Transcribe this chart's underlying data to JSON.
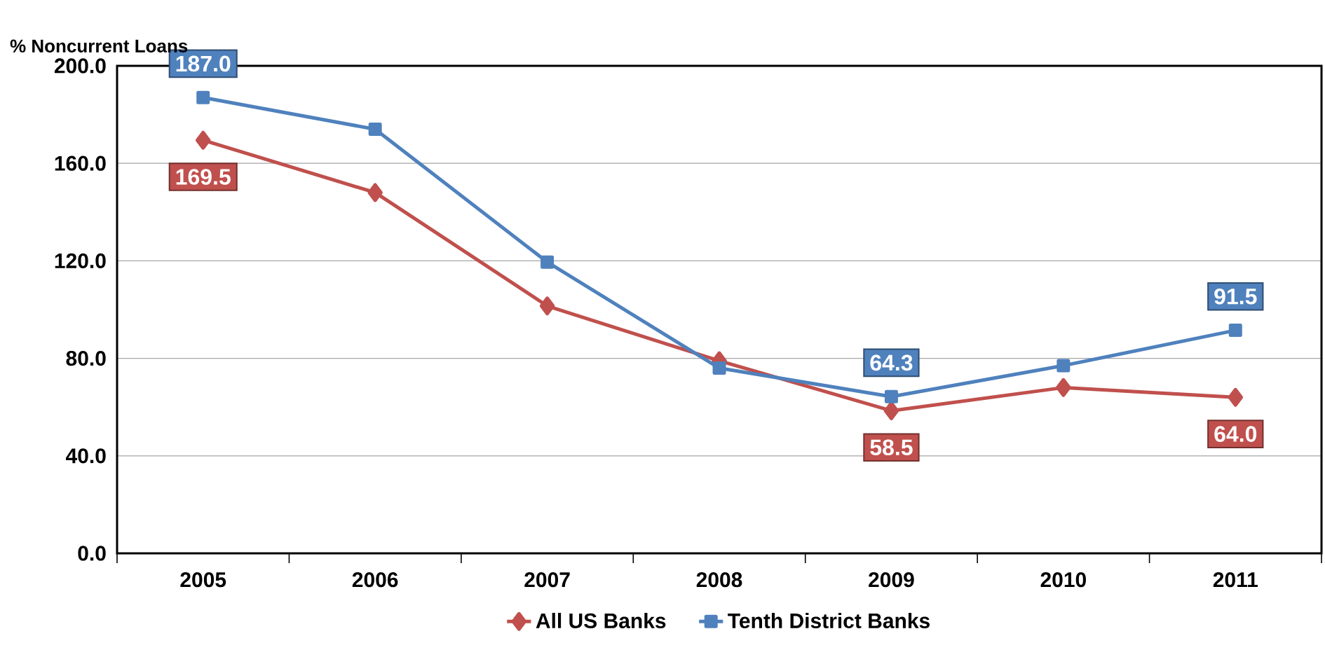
{
  "chart_data": {
    "type": "line",
    "ylabel": "% Noncurrent Loans",
    "categories": [
      "2005",
      "2006",
      "2007",
      "2008",
      "2009",
      "2010",
      "2011"
    ],
    "series": [
      {
        "name": "All US Banks",
        "color": "#c0504d",
        "marker": "diamond",
        "values": [
          169.5,
          148,
          101.5,
          79,
          58.5,
          68,
          64.0
        ],
        "value_labels": [
          "169.5",
          null,
          null,
          null,
          "58.5",
          null,
          "64.0"
        ]
      },
      {
        "name": "Tenth District Banks",
        "color": "#4f81bd",
        "marker": "square",
        "values": [
          187.0,
          174,
          119.5,
          76,
          64.3,
          77,
          91.5
        ],
        "value_labels": [
          "187.0",
          null,
          null,
          null,
          "64.3",
          null,
          "91.5"
        ]
      }
    ],
    "ylim": [
      0,
      200
    ],
    "yticks": [
      {
        "value": 0,
        "label": "0.0"
      },
      {
        "value": 40,
        "label": "40.0"
      },
      {
        "value": 80,
        "label": "80.0"
      },
      {
        "value": 120,
        "label": "120.0"
      },
      {
        "value": 160,
        "label": "160.0"
      },
      {
        "value": 200,
        "label": "200.0"
      }
    ],
    "grid": "y",
    "legend": "bottom",
    "line_style": "solid"
  }
}
